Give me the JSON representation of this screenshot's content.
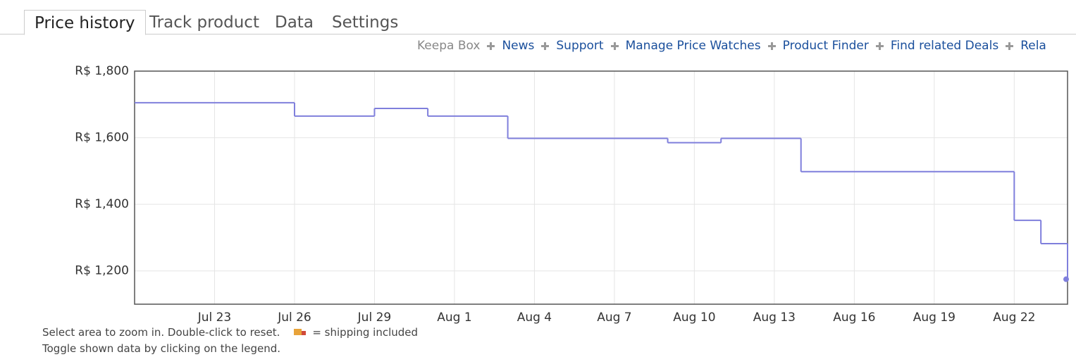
{
  "tabs": [
    "Price history",
    "Track product",
    "Data",
    "Settings"
  ],
  "links": [
    "Keepa Box",
    "News",
    "Support",
    "Manage Price Watches",
    "Product Finder",
    "Find related Deals",
    "Rela"
  ],
  "chart_data": {
    "type": "line",
    "step": true,
    "x": [
      "Jul 20",
      "Jul 26",
      "Jul 29",
      "Jul 31",
      "Aug 3",
      "Aug 9",
      "Aug 11",
      "Aug 14",
      "Aug 22",
      "Aug 23",
      "Aug 24"
    ],
    "series": [
      {
        "color": "#7f7fdc",
        "values": [
          1705,
          1665,
          1688,
          1665,
          1598,
          1585,
          1598,
          1498,
          1352,
          1282,
          1175
        ]
      }
    ],
    "xlim": [
      "Jul 20",
      "Aug 24"
    ],
    "xticks": [
      "Jul 23",
      "Jul 26",
      "Jul 29",
      "Aug 1",
      "Aug 4",
      "Aug 7",
      "Aug 10",
      "Aug 13",
      "Aug 16",
      "Aug 19",
      "Aug 22"
    ],
    "ylim": [
      1100,
      1800
    ],
    "yticks": [
      {
        "value": 1200,
        "label": "R$ 1,200"
      },
      {
        "value": 1400,
        "label": "R$ 1,400"
      },
      {
        "value": 1600,
        "label": "R$ 1,600"
      },
      {
        "value": 1800,
        "label": "R$ 1,800"
      }
    ],
    "grid": true
  },
  "notes": {
    "zoom": "Select area to zoom in. Double-click to reset.",
    "shipping": "= shipping included",
    "toggle": "Toggle shown data by clicking on the legend."
  }
}
